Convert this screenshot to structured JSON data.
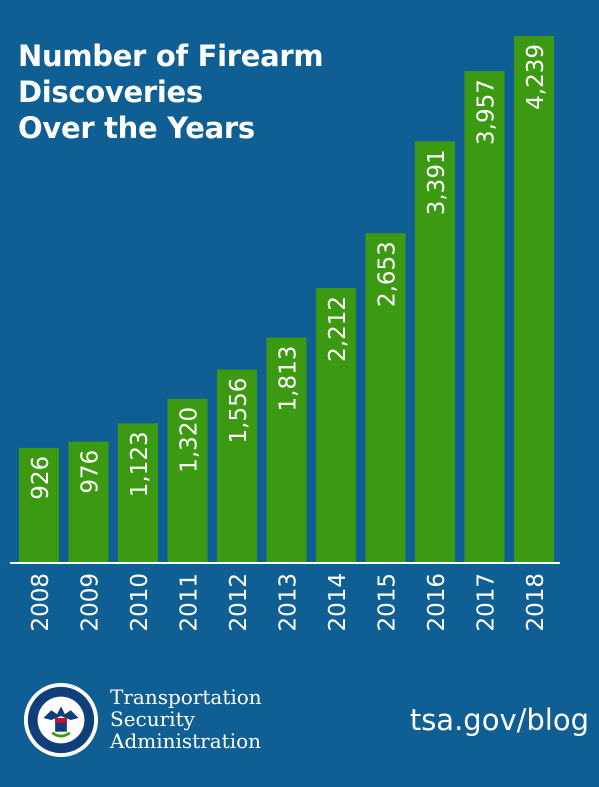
{
  "title_lines": [
    "Number of Firearm",
    "Discoveries",
    "Over the Years"
  ],
  "footer": {
    "agency_lines": [
      "Transportation",
      "Security",
      "Administration"
    ],
    "seal_text": "U.S. DEPARTMENT OF HOMELAND SECURITY",
    "site": "tsa.gov/blog",
    "seal_icon": "dhs-seal-icon"
  },
  "colors": {
    "background": "#0f5f94",
    "bar": "#3c9a12",
    "text": "#ffffff"
  },
  "chart_data": {
    "type": "bar",
    "title": "Number of Firearm Discoveries Over the Years",
    "categories": [
      "2008",
      "2009",
      "2010",
      "2011",
      "2012",
      "2013",
      "2014",
      "2015",
      "2016",
      "2017",
      "2018"
    ],
    "values": [
      926,
      976,
      1123,
      1320,
      1556,
      1813,
      2212,
      2653,
      3391,
      3957,
      4239
    ],
    "value_labels": [
      "926",
      "976",
      "1,123",
      "1,320",
      "1,556",
      "1,813",
      "2,212",
      "2,653",
      "3,391",
      "3,957",
      "4,239"
    ],
    "xlabel": "",
    "ylabel": "",
    "ylim": [
      0,
      4239
    ],
    "grid": false,
    "legend": "none",
    "data_labels": "inside-bar-rotated"
  }
}
